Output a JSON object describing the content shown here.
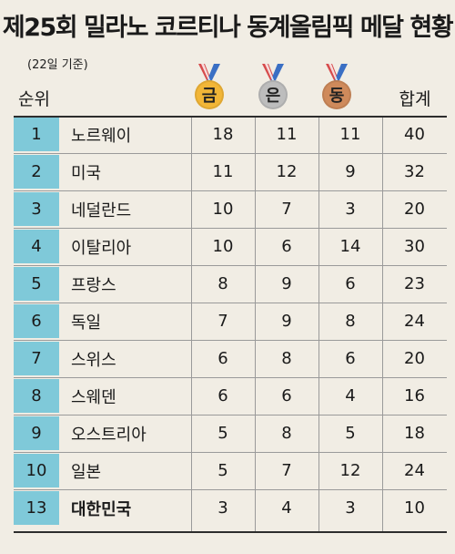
{
  "title": "제25회 밀라노 코르티나 동계올림픽 메달 현황",
  "subtitle": "(22일 기준)",
  "headers": {
    "rank": "순위",
    "gold": "금",
    "silver": "은",
    "bronze": "동",
    "total": "합계"
  },
  "rows": [
    {
      "rank": "1",
      "country": "노르웨이",
      "gold": "18",
      "silver": "11",
      "bronze": "11",
      "total": "40"
    },
    {
      "rank": "2",
      "country": "미국",
      "gold": "11",
      "silver": "12",
      "bronze": "9",
      "total": "32"
    },
    {
      "rank": "3",
      "country": "네덜란드",
      "gold": "10",
      "silver": "7",
      "bronze": "3",
      "total": "20"
    },
    {
      "rank": "4",
      "country": "이탈리아",
      "gold": "10",
      "silver": "6",
      "bronze": "14",
      "total": "30"
    },
    {
      "rank": "5",
      "country": "프랑스",
      "gold": "8",
      "silver": "9",
      "bronze": "6",
      "total": "23"
    },
    {
      "rank": "6",
      "country": "독일",
      "gold": "7",
      "silver": "9",
      "bronze": "8",
      "total": "24"
    },
    {
      "rank": "7",
      "country": "스위스",
      "gold": "6",
      "silver": "8",
      "bronze": "6",
      "total": "20"
    },
    {
      "rank": "8",
      "country": "스웨덴",
      "gold": "6",
      "silver": "6",
      "bronze": "4",
      "total": "16"
    },
    {
      "rank": "9",
      "country": "오스트리아",
      "gold": "5",
      "silver": "8",
      "bronze": "5",
      "total": "18"
    },
    {
      "rank": "10",
      "country": "일본",
      "gold": "5",
      "silver": "7",
      "bronze": "12",
      "total": "24"
    },
    {
      "rank": "13",
      "country": "대한민국",
      "gold": "3",
      "silver": "4",
      "bronze": "3",
      "total": "10"
    }
  ],
  "colors": {
    "background": "#f1ede4",
    "rank_column": "#7fc9d9",
    "gold": "#f2b637",
    "silver": "#bdbdbd",
    "bronze": "#cf8a5b"
  },
  "icons": {
    "gold": "gold-medal-icon",
    "silver": "silver-medal-icon",
    "bronze": "bronze-medal-icon"
  }
}
